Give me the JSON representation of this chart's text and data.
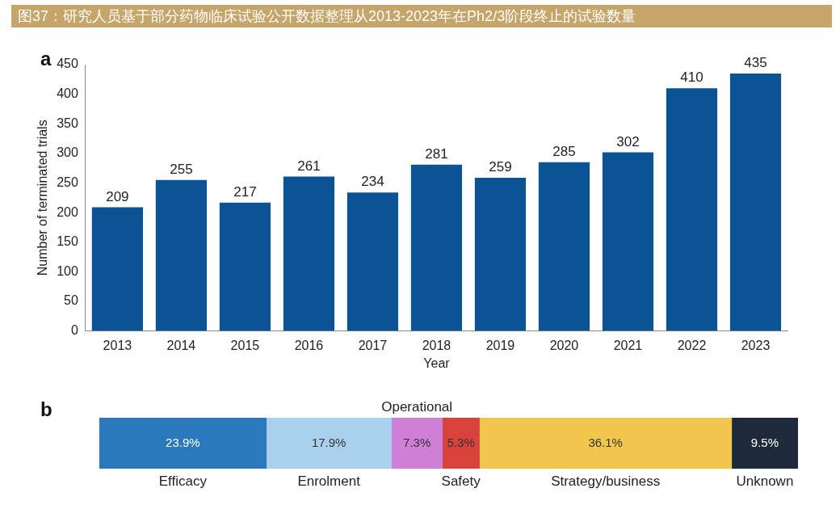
{
  "chart_data": [
    {
      "type": "bar",
      "title": "图37：研究人员基于部分药物临床试验公开数据整理从2013-2023年在Ph2/3阶段终止的试验数量",
      "xlabel": "Year",
      "ylabel": "Number of terminated trials",
      "annotations": [
        "a"
      ],
      "categories": [
        "2013",
        "2014",
        "2015",
        "2016",
        "2017",
        "2018",
        "2019",
        "2020",
        "2021",
        "2022",
        "2023"
      ],
      "values": [
        209,
        255,
        217,
        261,
        234,
        281,
        259,
        285,
        302,
        410,
        435
      ],
      "color": "#0b5394",
      "ylim": [
        0,
        450
      ],
      "yticks": [
        0,
        50,
        100,
        150,
        200,
        250,
        300,
        350,
        400,
        450
      ],
      "data_labels": true,
      "legend": false,
      "grid": false
    },
    {
      "type": "bar",
      "orientation": "horizontal",
      "stacked": true,
      "tick_labels": false,
      "annotations": [
        "b",
        "Operational"
      ],
      "categories": [
        null
      ],
      "legend": false,
      "series": [
        {
          "name": "Efficacy",
          "color": "#2b79bd",
          "values": [
            23.9
          ],
          "value_labels": [
            "23.9%"
          ]
        },
        {
          "name": "Enrolment",
          "color": "#a9d1ee",
          "values": [
            17.9
          ],
          "value_labels": [
            "17.9%"
          ]
        },
        {
          "name": null,
          "color": "#cf80d6",
          "values": [
            7.3
          ],
          "value_labels": [
            "7.3%"
          ]
        },
        {
          "name": "Safety",
          "color": "#d9423b",
          "values": [
            5.3
          ],
          "value_labels": [
            "5.3%"
          ]
        },
        {
          "name": "Strategy/business",
          "color": "#f0c74c",
          "values": [
            36.1
          ],
          "value_labels": [
            "36.1%"
          ]
        },
        {
          "name": "Unknown",
          "color": "#1e2a3c",
          "values": [
            9.5
          ],
          "value_labels": [
            "9.5%"
          ]
        }
      ]
    }
  ]
}
